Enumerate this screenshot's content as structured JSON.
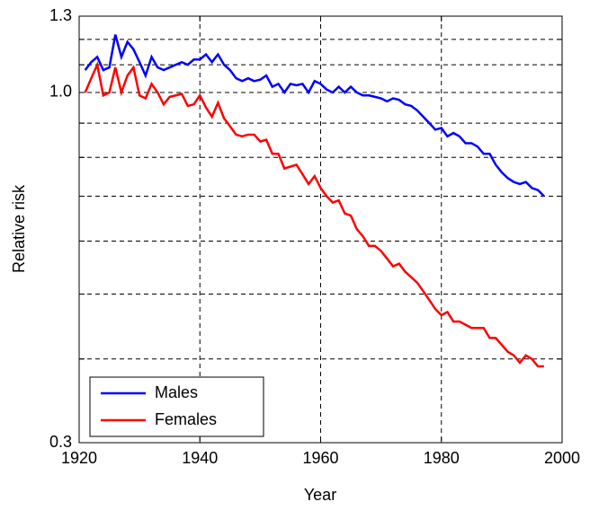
{
  "chart_data": {
    "type": "line",
    "xlabel": "Year",
    "ylabel": "Relative risk",
    "x": [
      1921,
      1922,
      1923,
      1924,
      1925,
      1926,
      1927,
      1928,
      1929,
      1930,
      1931,
      1932,
      1933,
      1934,
      1935,
      1936,
      1937,
      1938,
      1939,
      1940,
      1941,
      1942,
      1943,
      1944,
      1945,
      1946,
      1947,
      1948,
      1949,
      1950,
      1951,
      1952,
      1953,
      1954,
      1955,
      1956,
      1957,
      1958,
      1959,
      1960,
      1961,
      1962,
      1963,
      1964,
      1965,
      1966,
      1967,
      1968,
      1969,
      1970,
      1971,
      1972,
      1973,
      1974,
      1975,
      1976,
      1977,
      1978,
      1979,
      1980,
      1981,
      1982,
      1983,
      1984,
      1985,
      1986,
      1987,
      1988,
      1989,
      1990,
      1991,
      1992,
      1993,
      1994,
      1995,
      1996,
      1997
    ],
    "series": [
      {
        "name": "Males",
        "color": "#0000ff",
        "values": [
          1.08,
          1.11,
          1.13,
          1.08,
          1.09,
          1.22,
          1.13,
          1.19,
          1.16,
          1.11,
          1.06,
          1.13,
          1.09,
          1.08,
          1.09,
          1.1,
          1.11,
          1.1,
          1.12,
          1.12,
          1.14,
          1.11,
          1.14,
          1.1,
          1.08,
          1.05,
          1.04,
          1.05,
          1.04,
          1.045,
          1.06,
          1.02,
          1.03,
          1.0,
          1.03,
          1.025,
          1.03,
          1.0,
          1.04,
          1.03,
          1.01,
          1.0,
          1.02,
          1.0,
          1.02,
          1.0,
          0.99,
          0.99,
          0.985,
          0.98,
          0.97,
          0.98,
          0.975,
          0.96,
          0.955,
          0.94,
          0.92,
          0.9,
          0.88,
          0.885,
          0.86,
          0.87,
          0.86,
          0.84,
          0.84,
          0.83,
          0.81,
          0.81,
          0.78,
          0.76,
          0.745,
          0.735,
          0.73,
          0.735,
          0.72,
          0.715,
          0.7
        ]
      },
      {
        "name": "Females",
        "color": "#ff0000",
        "values": [
          1.0,
          1.05,
          1.1,
          0.99,
          1.0,
          1.09,
          1.0,
          1.06,
          1.09,
          0.99,
          0.98,
          1.03,
          1.0,
          0.96,
          0.985,
          0.99,
          0.995,
          0.955,
          0.96,
          0.99,
          0.95,
          0.92,
          0.965,
          0.915,
          0.89,
          0.865,
          0.86,
          0.865,
          0.865,
          0.845,
          0.85,
          0.81,
          0.81,
          0.77,
          0.775,
          0.78,
          0.755,
          0.73,
          0.75,
          0.72,
          0.7,
          0.685,
          0.69,
          0.66,
          0.655,
          0.625,
          0.61,
          0.59,
          0.59,
          0.58,
          0.565,
          0.55,
          0.555,
          0.54,
          0.53,
          0.52,
          0.505,
          0.49,
          0.475,
          0.465,
          0.47,
          0.455,
          0.455,
          0.45,
          0.445,
          0.445,
          0.445,
          0.43,
          0.43,
          0.42,
          0.41,
          0.405,
          0.395,
          0.405,
          0.4,
          0.39,
          0.39
        ]
      }
    ],
    "xlim": [
      1920,
      2000
    ],
    "xticks": [
      1920,
      1940,
      1960,
      1980,
      2000
    ],
    "ylim": [
      0.3,
      1.3
    ],
    "yticks": [
      0.3,
      {
        "value": 1,
        "label": "1.0"
      },
      1.3
    ],
    "minor_yticks": [
      0.4,
      0.5,
      0.6,
      0.7,
      0.8,
      0.9,
      1.1,
      1.2
    ],
    "log_y": true,
    "grid": true,
    "legend": "lower left"
  }
}
